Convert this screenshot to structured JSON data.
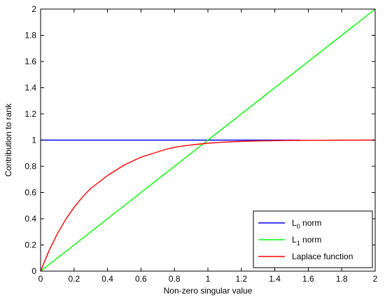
{
  "chart_data": {
    "type": "line",
    "title": "",
    "xlabel": "Non-zero singular value",
    "ylabel": "Contribution to rank",
    "xlim": [
      0,
      2
    ],
    "ylim": [
      0,
      2
    ],
    "xticks": [
      0,
      0.2,
      0.4,
      0.6,
      0.8,
      1,
      1.2,
      1.4,
      1.6,
      1.8,
      2
    ],
    "yticks": [
      0,
      0.2,
      0.4,
      0.6,
      0.8,
      1,
      1.2,
      1.4,
      1.6,
      1.8,
      2
    ],
    "xtick_labels": [
      "0",
      "0.2",
      "0.4",
      "0.6",
      "0.8",
      "1",
      "1.2",
      "1.4",
      "1.6",
      "1.8",
      "2"
    ],
    "ytick_labels": [
      "0",
      "0.2",
      "0.4",
      "0.6",
      "0.8",
      "1",
      "1.2",
      "1.4",
      "1.6",
      "1.8",
      "2"
    ],
    "grid": false,
    "legend_position": "bottom-right",
    "series": [
      {
        "name": "L0 norm",
        "legend_main": "L",
        "legend_sub": "0",
        "legend_rest": " norm",
        "color": "#0000ff",
        "x": [
          0,
          1.55
        ],
        "y": [
          1,
          1
        ]
      },
      {
        "name": "L1 norm",
        "legend_main": "L",
        "legend_sub": "1",
        "legend_rest": " norm",
        "color": "#00ff00",
        "x": [
          0,
          2
        ],
        "y": [
          0,
          2
        ]
      },
      {
        "name": "Laplace function",
        "legend_main": "Laplace function",
        "legend_sub": "",
        "legend_rest": "",
        "color": "#ff0000",
        "x": [
          0,
          0.05,
          0.1,
          0.15,
          0.2,
          0.25,
          0.3,
          0.35,
          0.4,
          0.45,
          0.5,
          0.55,
          0.6,
          0.65,
          0.7,
          0.75,
          0.8,
          0.85,
          0.9,
          0.95,
          1,
          1.05,
          1.1,
          1.15,
          1.2,
          1.25,
          1.3,
          1.35,
          1.4,
          1.45,
          1.5,
          1.55,
          1.6,
          1.7,
          1.8,
          1.9,
          2
        ],
        "y": [
          0,
          0.155,
          0.285,
          0.395,
          0.487,
          0.565,
          0.632,
          0.68,
          0.73,
          0.77,
          0.81,
          0.84,
          0.87,
          0.89,
          0.91,
          0.93,
          0.945,
          0.955,
          0.963,
          0.97,
          0.976,
          0.981,
          0.985,
          0.988,
          0.99,
          0.992,
          0.994,
          0.995,
          0.996,
          0.997,
          0.998,
          0.998,
          0.999,
          0.999,
          1,
          1,
          1
        ]
      }
    ]
  }
}
